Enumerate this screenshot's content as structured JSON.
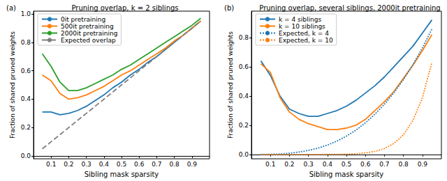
{
  "chart_data": [
    {
      "type": "line",
      "label": "(a)",
      "title": "Pruning overlap, k = 2 siblings",
      "x_label": "Sibling mask sparsity",
      "y_label": "Fraction of shared pruned weights",
      "x": [
        0.05,
        0.1,
        0.15,
        0.2,
        0.25,
        0.3,
        0.35,
        0.4,
        0.45,
        0.5,
        0.55,
        0.6,
        0.65,
        0.7,
        0.75,
        0.8,
        0.85,
        0.9,
        0.95
      ],
      "xlim": [
        0,
        1
      ],
      "xticks": [
        0.1,
        0.2,
        0.3,
        0.4,
        0.5,
        0.6,
        0.7,
        0.8,
        0.9
      ],
      "ylim": [
        -0.02,
        1.02
      ],
      "yticks": [
        {
          "value": 0,
          "label": "0.0"
        },
        0.2,
        0.4,
        0.6,
        0.8,
        {
          "value": 1,
          "label": "1.0"
        }
      ],
      "grid": false,
      "legend": "upper left",
      "series": [
        {
          "name": "0it pretraining",
          "color": "#1f77b4",
          "line_style": "solid",
          "values": [
            0.31,
            0.31,
            0.29,
            0.3,
            0.32,
            0.35,
            0.39,
            0.43,
            0.48,
            0.52,
            0.57,
            0.61,
            0.66,
            0.7,
            0.75,
            0.8,
            0.85,
            0.9,
            0.95
          ]
        },
        {
          "name": "500it pretraining",
          "color": "#ff7f0e",
          "line_style": "solid",
          "values": [
            0.57,
            0.53,
            0.44,
            0.4,
            0.41,
            0.43,
            0.46,
            0.49,
            0.53,
            0.57,
            0.6,
            0.64,
            0.68,
            0.72,
            0.76,
            0.81,
            0.85,
            0.9,
            0.95
          ]
        },
        {
          "name": "2000it pretraining",
          "color": "#2ca02c",
          "line_style": "solid",
          "values": [
            0.72,
            0.63,
            0.52,
            0.46,
            0.46,
            0.48,
            0.51,
            0.54,
            0.57,
            0.61,
            0.64,
            0.68,
            0.72,
            0.76,
            0.8,
            0.84,
            0.88,
            0.92,
            0.97
          ]
        },
        {
          "name": "Expected overlap",
          "color": "#7f7f7f",
          "line_style": "dashed",
          "values": [
            0.05,
            0.1,
            0.15,
            0.2,
            0.25,
            0.3,
            0.35,
            0.4,
            0.45,
            0.5,
            0.55,
            0.6,
            0.65,
            0.7,
            0.75,
            0.8,
            0.85,
            0.9,
            0.95
          ]
        }
      ]
    },
    {
      "type": "line",
      "label": "(b)",
      "title": "Pruning overlap, several siblings, 2000it pretraining",
      "x_label": "Sibling mask sparsity",
      "y_label": "Fraction of shared pruned weights",
      "x": [
        0.05,
        0.1,
        0.15,
        0.2,
        0.25,
        0.3,
        0.35,
        0.4,
        0.45,
        0.5,
        0.55,
        0.6,
        0.65,
        0.7,
        0.75,
        0.8,
        0.85,
        0.9,
        0.95
      ],
      "xlim": [
        0,
        1
      ],
      "xticks": [
        0.1,
        0.2,
        0.3,
        0.4,
        0.5,
        0.6,
        0.7,
        0.8,
        0.9
      ],
      "ylim": [
        -0.03,
        0.98
      ],
      "yticks": [
        {
          "value": 0,
          "label": "0.0"
        },
        0.2,
        0.4,
        0.6,
        0.8
      ],
      "grid": false,
      "legend": "upper left",
      "series": [
        {
          "name": "k = 4 siblings",
          "color": "#1f77b4",
          "line_style": "solid",
          "values": [
            0.64,
            0.54,
            0.4,
            0.31,
            0.28,
            0.26,
            0.26,
            0.28,
            0.3,
            0.33,
            0.37,
            0.42,
            0.47,
            0.53,
            0.6,
            0.67,
            0.74,
            0.83,
            0.92
          ]
        },
        {
          "name": "k = 10 siblings",
          "color": "#ff7f0e",
          "line_style": "solid",
          "values": [
            0.62,
            0.56,
            0.39,
            0.29,
            0.24,
            0.21,
            0.19,
            0.17,
            0.17,
            0.18,
            0.2,
            0.24,
            0.3,
            0.36,
            0.43,
            0.52,
            0.61,
            0.71,
            0.82
          ]
        },
        {
          "name": "Expected, k = 4",
          "color": "#1f77b4",
          "line_style": "dotted",
          "values": [
            0.0001,
            0.001,
            0.003,
            0.008,
            0.016,
            0.027,
            0.043,
            0.064,
            0.091,
            0.125,
            0.166,
            0.216,
            0.275,
            0.343,
            0.422,
            0.512,
            0.614,
            0.729,
            0.857
          ]
        },
        {
          "name": "Expected, k = 10",
          "color": "#ff7f0e",
          "line_style": "dotted",
          "values": [
            0,
            0,
            0,
            0,
            0,
            0,
            0,
            0.0003,
            0.0008,
            0.002,
            0.005,
            0.01,
            0.021,
            0.04,
            0.075,
            0.134,
            0.232,
            0.387,
            0.63
          ]
        }
      ]
    }
  ]
}
